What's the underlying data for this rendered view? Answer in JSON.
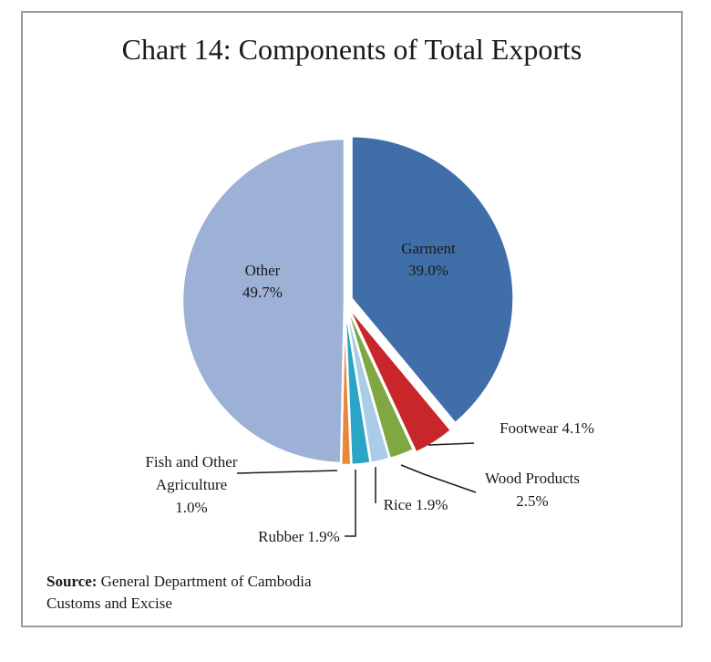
{
  "title": "Chart 14: Components of Total Exports",
  "source": {
    "label": "Source:",
    "line1": "General Department of Cambodia",
    "line2": "Customs and Excise"
  },
  "chart_data": {
    "type": "pie",
    "title": "Chart 14: Components of Total Exports",
    "slices": [
      {
        "name": "Garment",
        "value": 39.0,
        "label": "39.0%",
        "color": "#3f6ea8"
      },
      {
        "name": "Footwear",
        "value": 4.1,
        "label": "4.1%",
        "color": "#c9262b"
      },
      {
        "name": "Wood Products",
        "value": 2.5,
        "label": "2.5%",
        "color": "#7fa843"
      },
      {
        "name": "Rice",
        "value": 1.9,
        "label": "1.9%",
        "color": "#a9cce8"
      },
      {
        "name": "Rubber",
        "value": 1.9,
        "label": "1.9%",
        "color": "#2aa5c6"
      },
      {
        "name": "Fish and Other Agriculture",
        "value": 1.0,
        "label": "1.0%",
        "color": "#e8883a"
      },
      {
        "name": "Other",
        "value": 49.7,
        "label": "49.7%",
        "color": "#9db0d6"
      }
    ]
  }
}
